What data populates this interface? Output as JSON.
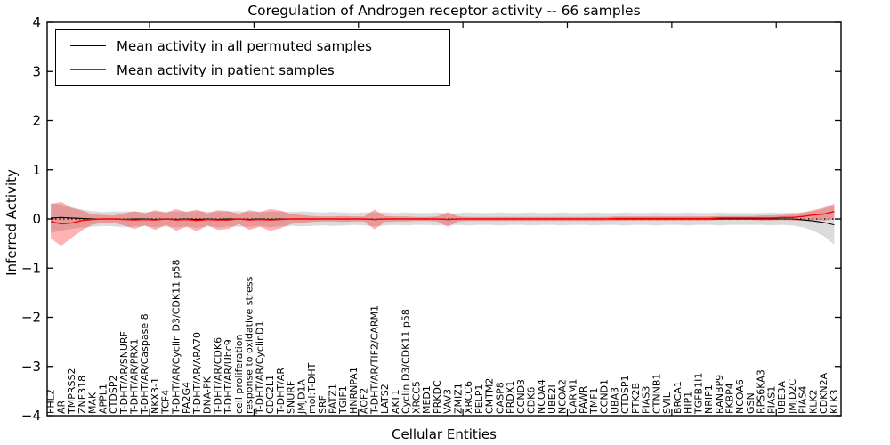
{
  "title": "Coregulation of Androgen receptor activity -- 66 samples",
  "legend": {
    "items": [
      {
        "label": "Mean activity in all permuted samples",
        "color": "#000000"
      },
      {
        "label": "Mean activity in patient samples",
        "color": "#ff0000"
      }
    ]
  },
  "axes": {
    "xlabel": "Cellular Entities",
    "ylabel": "Inferred Activity",
    "yticks": [
      "4",
      "3",
      "2",
      "1",
      "0",
      "−1",
      "−2",
      "−3",
      "−4"
    ],
    "ylim": [
      -4,
      4
    ]
  },
  "chart_data": {
    "type": "line",
    "title": "Coregulation of Androgen receptor activity -- 66 samples",
    "xlabel": "Cellular Entities",
    "ylabel": "Inferred Activity",
    "ylim": [
      -4,
      4
    ],
    "grid": false,
    "legend_position": "upper left",
    "zero_reference_line": {
      "y": 0,
      "style": "dotted",
      "color": "#000000"
    },
    "categories": [
      "FHL2",
      "AR",
      "TMPRSS2",
      "ZNF318",
      "MAK",
      "APPL1",
      "CTDSP2",
      "T-DHT/AR/SNURF",
      "T-DHT/AR/PRX1",
      "T-DHT/AR/Caspase 8",
      "NKX3-1",
      "TCF4",
      "T-DHT/AR/Cyclin D3/CDK11 p58",
      "PA2G4",
      "T-DHT/AR/ARA70",
      "DNA-PK",
      "T-DHT/AR/CDK6",
      "T-DHT/AR/Ubc9",
      "cell proliferation",
      "response to oxidative stress",
      "T-DHT/AR/CyclinD1",
      "CDC2L1",
      "T-DHT/AR",
      "SNURF",
      "JMJD1A",
      "mol:T-DHT",
      "SRF",
      "PATZ1",
      "TGIF1",
      "HNRNPA1",
      "AOF2",
      "T-DHT/AR/TIF2/CARM1",
      "LATS2",
      "AKT1",
      "Cyclin D3/CDK11 p58",
      "XRCC5",
      "MED1",
      "PRKDC",
      "VAV3",
      "ZMIZ1",
      "XRCC6",
      "PELP1",
      "CMTM2",
      "CASP8",
      "PRDX1",
      "CCND3",
      "CDK6",
      "NCOA4",
      "UBE2I",
      "NCOA2",
      "CARM1",
      "PAWR",
      "TMF1",
      "CCND1",
      "UBA3",
      "CTDSP1",
      "PTK2B",
      "PIAS3",
      "CTNNB1",
      "SVIL",
      "BRCA1",
      "HIP1",
      "TGFB1I1",
      "NRIP1",
      "RANBP9",
      "FKBP4",
      "NCOA6",
      "GSN",
      "RPS6KA3",
      "PIAS1",
      "UBE3A",
      "JMJD2C",
      "PIAS4",
      "KLK2",
      "CDKN2A",
      "KLK3"
    ],
    "series": [
      {
        "name": "Mean activity in all permuted samples",
        "color": "#000000",
        "band_color": "rgba(0,0,0,0.14)",
        "values": [
          0.02,
          0.03,
          0.02,
          0.01,
          0,
          0,
          0,
          -0.01,
          0,
          0,
          -0.01,
          0,
          -0.01,
          0,
          -0.01,
          0,
          -0.01,
          0,
          0,
          -0.01,
          0,
          -0.01,
          0,
          0,
          0,
          0,
          0,
          0,
          0,
          0,
          0,
          -0.01,
          0,
          0,
          0,
          0,
          0,
          0,
          -0.01,
          0,
          0,
          0,
          0,
          0,
          0,
          0,
          0,
          0,
          0,
          0,
          0,
          0,
          0,
          0,
          0,
          0,
          0,
          0,
          0,
          0,
          0,
          0,
          0,
          0,
          0,
          0,
          0,
          0,
          0,
          0,
          0,
          0,
          -0.02,
          -0.04,
          -0.07,
          -0.12
        ],
        "std": [
          0.3,
          0.26,
          0.22,
          0.18,
          0.16,
          0.14,
          0.15,
          0.16,
          0.15,
          0.14,
          0.16,
          0.15,
          0.16,
          0.15,
          0.17,
          0.15,
          0.16,
          0.15,
          0.16,
          0.15,
          0.14,
          0.16,
          0.15,
          0.14,
          0.15,
          0.14,
          0.13,
          0.14,
          0.13,
          0.12,
          0.13,
          0.14,
          0.13,
          0.12,
          0.13,
          0.12,
          0.12,
          0.13,
          0.12,
          0.12,
          0.13,
          0.12,
          0.12,
          0.13,
          0.12,
          0.12,
          0.13,
          0.12,
          0.12,
          0.13,
          0.12,
          0.12,
          0.13,
          0.12,
          0.12,
          0.13,
          0.12,
          0.12,
          0.13,
          0.12,
          0.12,
          0.13,
          0.12,
          0.12,
          0.13,
          0.12,
          0.12,
          0.12,
          0.12,
          0.13,
          0.12,
          0.13,
          0.15,
          0.2,
          0.28,
          0.4
        ]
      },
      {
        "name": "Mean activity in patient samples",
        "color": "#ff0000",
        "band_color": "rgba(255,0,0,0.30)",
        "values": [
          -0.05,
          -0.1,
          -0.08,
          -0.03,
          -0.01,
          0,
          0,
          -0.01,
          -0.02,
          -0.01,
          -0.02,
          0,
          -0.02,
          -0.01,
          -0.03,
          -0.01,
          -0.02,
          -0.02,
          0,
          -0.02,
          -0.01,
          -0.02,
          -0.01,
          0,
          0,
          0,
          0,
          0,
          0,
          0,
          0,
          -0.01,
          0,
          0,
          0,
          0,
          0,
          0,
          -0.01,
          0,
          0,
          0,
          0,
          0,
          0,
          0,
          0,
          0,
          0,
          0,
          0,
          0,
          0,
          0,
          0.01,
          0.01,
          0.01,
          0.01,
          0.01,
          0.01,
          0.01,
          0.01,
          0.01,
          0.01,
          0.02,
          0.02,
          0.02,
          0.02,
          0.02,
          0.02,
          0.03,
          0.03,
          0.05,
          0.08,
          0.1,
          0.15
        ],
        "std": [
          0.35,
          0.45,
          0.3,
          0.2,
          0.1,
          0.08,
          0.07,
          0.12,
          0.18,
          0.12,
          0.2,
          0.12,
          0.22,
          0.15,
          0.22,
          0.12,
          0.2,
          0.18,
          0.1,
          0.2,
          0.15,
          0.22,
          0.18,
          0.1,
          0.08,
          0.06,
          0.05,
          0.05,
          0.06,
          0.05,
          0.05,
          0.2,
          0.06,
          0.05,
          0.05,
          0.04,
          0.04,
          0.05,
          0.15,
          0.05,
          0.04,
          0.04,
          0.04,
          0.04,
          0.04,
          0.04,
          0.04,
          0.04,
          0.04,
          0.04,
          0.04,
          0.04,
          0.04,
          0.04,
          0.04,
          0.04,
          0.04,
          0.04,
          0.04,
          0.04,
          0.04,
          0.04,
          0.04,
          0.04,
          0.04,
          0.04,
          0.04,
          0.04,
          0.05,
          0.05,
          0.05,
          0.06,
          0.08,
          0.1,
          0.13,
          0.16
        ]
      }
    ]
  }
}
